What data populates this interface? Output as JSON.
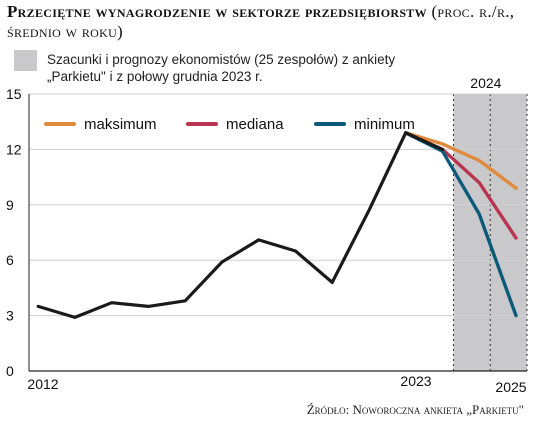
{
  "header": {
    "title": "Przeciętne wynagrodzenie w sektorze przedsiębiorstw",
    "subtitle": "(proc. r./r., średnio w roku)"
  },
  "note": {
    "text": "Szacunki i prognozy ekonomistów (25 zespołów) z ankiety „Parkietu\" i z połowy grudnia 2023 r.",
    "swatch_color": "#c9c9cb"
  },
  "source": "Źródło: Noworoczna ankieta „Parkietu\"",
  "chart_data": {
    "type": "line",
    "x_tick_labels": [
      "2012",
      "2023",
      "2025"
    ],
    "shaded_region_label": "2024",
    "ylim": [
      0,
      15
    ],
    "yticks": [
      0,
      3,
      6,
      9,
      12,
      15
    ],
    "grid": true,
    "legend_position": "top",
    "history": {
      "x": [
        2012,
        2013,
        2014,
        2015,
        2016,
        2017,
        2018,
        2019,
        2020,
        2021,
        2022,
        2023
      ],
      "values": [
        3.5,
        2.9,
        3.7,
        3.5,
        3.8,
        5.9,
        7.1,
        6.5,
        4.8,
        8.7,
        12.9,
        12.0
      ],
      "color": "#1a1a1a"
    },
    "series": [
      {
        "name": "maksimum",
        "color": "#e08a3c",
        "x": [
          2022,
          2023,
          2024,
          2025
        ],
        "values": [
          12.9,
          12.3,
          11.4,
          9.9
        ]
      },
      {
        "name": "mediana",
        "color": "#b8344f",
        "x": [
          2022,
          2023,
          2024,
          2025
        ],
        "values": [
          12.9,
          12.0,
          10.2,
          7.2
        ]
      },
      {
        "name": "minimum",
        "color": "#0c5a7a",
        "x": [
          2022,
          2023,
          2024,
          2025
        ],
        "values": [
          12.9,
          11.9,
          8.5,
          3.0
        ]
      }
    ]
  }
}
